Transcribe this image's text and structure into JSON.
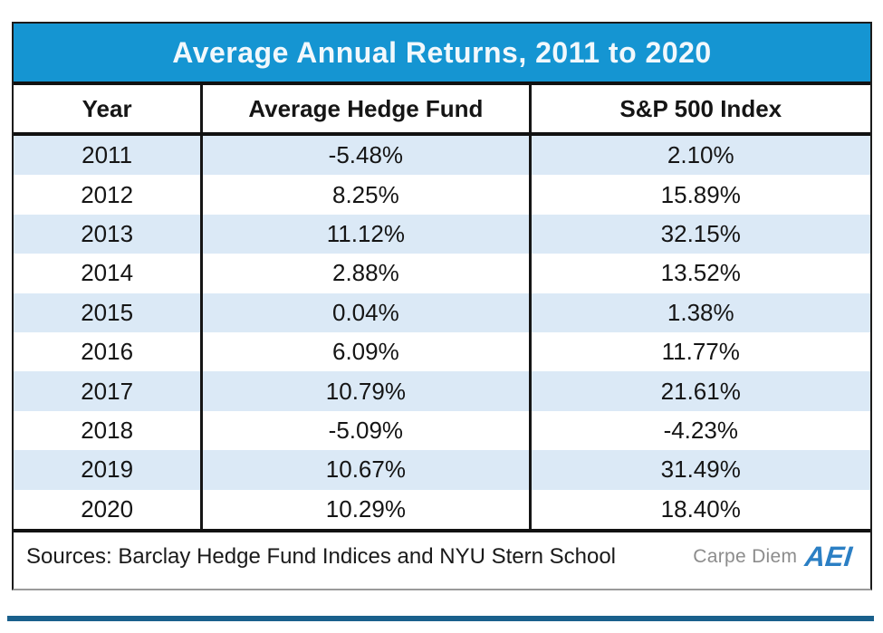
{
  "title": "Average Annual Returns, 2011 to 2020",
  "table": {
    "columns": [
      "Year",
      "Average Hedge Fund",
      "S&P 500 Index"
    ],
    "rows": [
      [
        "2011",
        "-5.48%",
        "2.10%"
      ],
      [
        "2012",
        "8.25%",
        "15.89%"
      ],
      [
        "2013",
        "11.12%",
        "32.15%"
      ],
      [
        "2014",
        "2.88%",
        "13.52%"
      ],
      [
        "2015",
        "0.04%",
        "1.38%"
      ],
      [
        "2016",
        "6.09%",
        "11.77%"
      ],
      [
        "2017",
        "10.79%",
        "21.61%"
      ],
      [
        "2018",
        "-5.09%",
        "-4.23%"
      ],
      [
        "2019",
        "10.67%",
        "31.49%"
      ],
      [
        "2020",
        "10.29%",
        "18.40%"
      ]
    ]
  },
  "footer": {
    "sources": "Sources: Barclay Hedge Fund Indices and NYU Stern School",
    "watermark": "Carpe Diem",
    "logo": "AEI"
  },
  "colors": {
    "title_bar_blue": "#1595D2",
    "row_stripe_blue": "#DBE9F6",
    "accent_bar_blue": "#1A608C",
    "logo_blue": "#2B7FC4",
    "watermark_gray": "#8C8C8C"
  },
  "chart_data": {
    "type": "table",
    "title": "Average Annual Returns, 2011 to 2020",
    "columns": [
      "Year",
      "Average Hedge Fund",
      "S&P 500 Index"
    ],
    "categories": [
      "2011",
      "2012",
      "2013",
      "2014",
      "2015",
      "2016",
      "2017",
      "2018",
      "2019",
      "2020"
    ],
    "series": [
      {
        "name": "Average Hedge Fund",
        "unit": "%",
        "values": [
          -5.48,
          8.25,
          11.12,
          2.88,
          0.04,
          6.09,
          10.79,
          -5.09,
          10.67,
          10.29
        ]
      },
      {
        "name": "S&P 500 Index",
        "unit": "%",
        "values": [
          2.1,
          15.89,
          32.15,
          13.52,
          1.38,
          11.77,
          21.61,
          -4.23,
          31.49,
          18.4
        ]
      }
    ],
    "source_note": "Sources: Barclay Hedge Fund Indices and NYU Stern School",
    "layout": {
      "striped_rows": true,
      "stripe_start": "2011",
      "header_style": "bold",
      "title_background": "#1595D2"
    }
  }
}
